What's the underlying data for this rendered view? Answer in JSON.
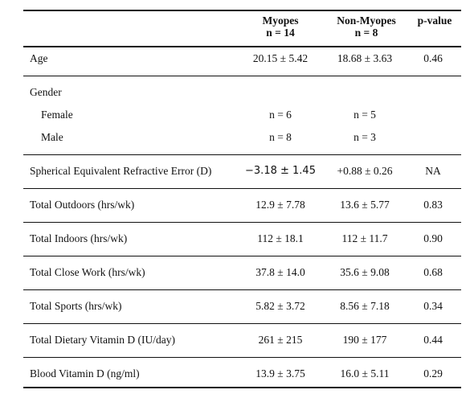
{
  "header": {
    "col1_line1": "Myopes",
    "col1_line2": "n = 14",
    "col2_line1": "Non-Myopes",
    "col2_line2": "n = 8",
    "col3": "p-value"
  },
  "rows": [
    {
      "label": "Age",
      "myopes": "20.15 ± 5.42",
      "non_myopes": "18.68 ± 3.63",
      "p": "0.46"
    },
    {
      "label": "Gender"
    },
    {
      "label": "Female",
      "myopes": "n = 6",
      "non_myopes": "n = 5"
    },
    {
      "label": "Male",
      "myopes": "n = 8",
      "non_myopes": "n = 3"
    },
    {
      "label": "Spherical Equivalent Refractive Error (D)",
      "myopes": "−3.18 ± 1.45",
      "non_myopes": "+0.88 ± 0.26",
      "p": "NA"
    },
    {
      "label": "Total Outdoors (hrs/wk)",
      "myopes": "12.9 ± 7.78",
      "non_myopes": "13.6 ± 5.77",
      "p": "0.83"
    },
    {
      "label": "Total Indoors (hrs/wk)",
      "myopes": "112 ± 18.1",
      "non_myopes": "112 ± 11.7",
      "p": "0.90"
    },
    {
      "label": "Total Close Work (hrs/wk)",
      "myopes": "37.8 ± 14.0",
      "non_myopes": "35.6 ± 9.08",
      "p": "0.68"
    },
    {
      "label": "Total Sports (hrs/wk)",
      "myopes": "5.82 ± 3.72",
      "non_myopes": "8.56 ± 7.18",
      "p": "0.34"
    },
    {
      "label": "Total Dietary Vitamin D (IU/day)",
      "myopes": "261 ± 215",
      "non_myopes": "190 ± 177",
      "p": "0.44"
    },
    {
      "label": "Blood Vitamin D (ng/ml)",
      "myopes": "13.9 ± 3.75",
      "non_myopes": "16.0 ± 5.11",
      "p": "0.29"
    }
  ]
}
